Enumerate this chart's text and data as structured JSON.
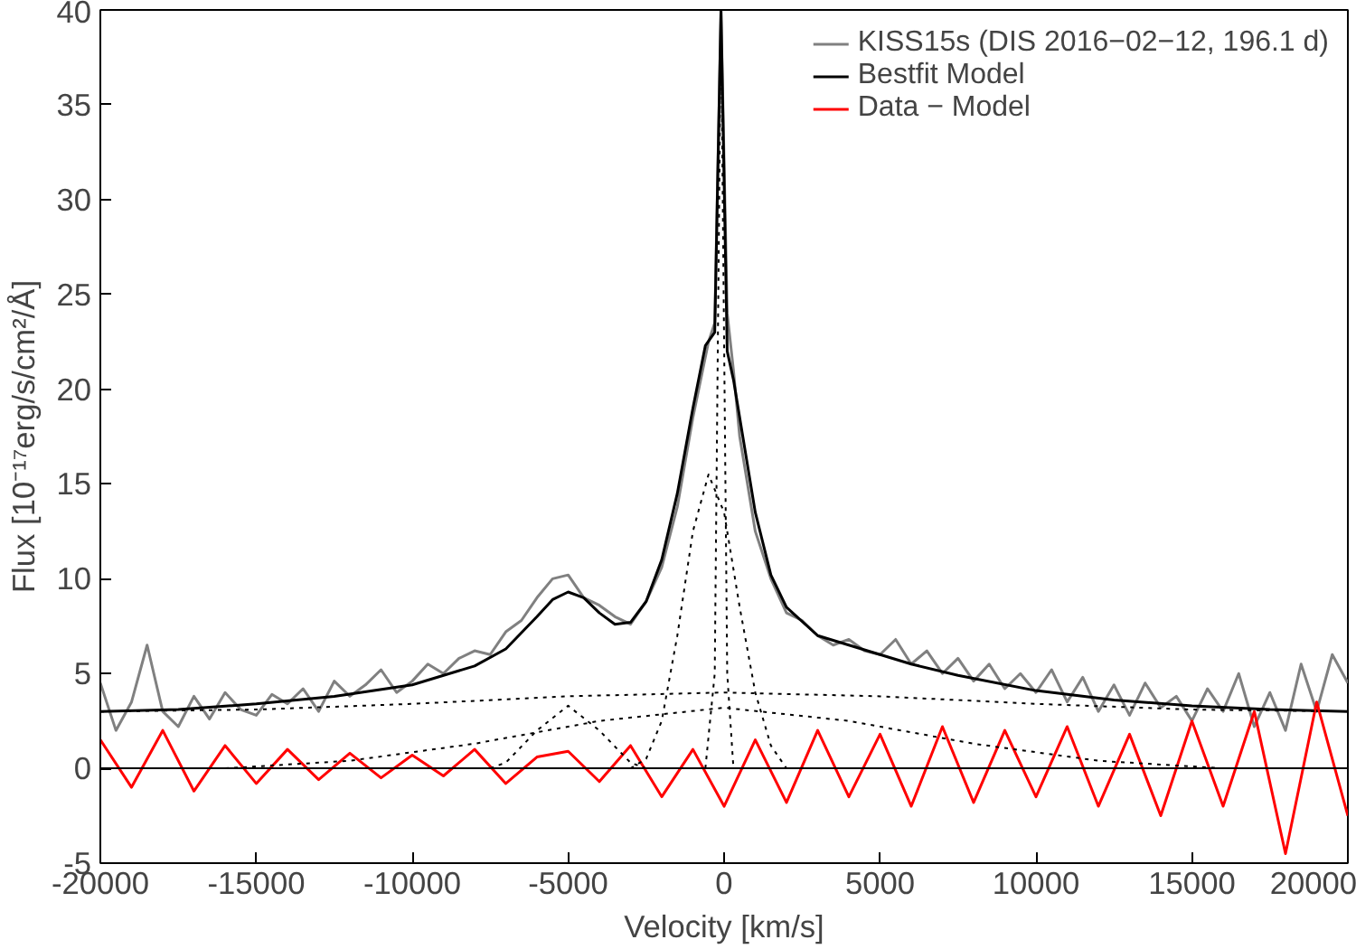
{
  "chart_data": {
    "type": "line",
    "xlabel": "Velocity [km/s]",
    "ylabel": "Flux [10⁻¹⁷erg/s/cm²/Å]",
    "xlim": [
      -20000,
      20000
    ],
    "ylim": [
      -5,
      40
    ],
    "xticks": [
      -20000,
      -15000,
      -10000,
      -5000,
      0,
      5000,
      10000,
      15000,
      20000
    ],
    "yticks": [
      -5,
      0,
      5,
      10,
      15,
      20,
      25,
      30,
      35,
      40
    ],
    "grid": false,
    "legend": "top right",
    "ref_lines": [
      {
        "axis": "y",
        "value": 0,
        "color": "#000000"
      }
    ],
    "series": [
      {
        "name": "KISS15s (DIS 2016−02−12, 196.1 d)",
        "color": "#808080",
        "x": [
          -20000,
          -19500,
          -19000,
          -18500,
          -18000,
          -17500,
          -17000,
          -16500,
          -16000,
          -15500,
          -15000,
          -14500,
          -14000,
          -13500,
          -13000,
          -12500,
          -12000,
          -11500,
          -11000,
          -10500,
          -10000,
          -9500,
          -9000,
          -8500,
          -8000,
          -7500,
          -7000,
          -6500,
          -6000,
          -5500,
          -5000,
          -4500,
          -4000,
          -3500,
          -3000,
          -2500,
          -2000,
          -1500,
          -1000,
          -500,
          -300,
          -100,
          100,
          300,
          500,
          1000,
          1500,
          2000,
          2500,
          3000,
          3500,
          4000,
          4500,
          5000,
          5500,
          6000,
          6500,
          7000,
          7500,
          8000,
          8500,
          9000,
          9500,
          10000,
          10500,
          11000,
          11500,
          12000,
          12500,
          13000,
          13500,
          14000,
          14500,
          15000,
          15500,
          16000,
          16500,
          17000,
          17500,
          18000,
          18500,
          19000,
          19500,
          20000
        ],
        "values": [
          4.5,
          2.0,
          3.5,
          6.5,
          3.0,
          2.2,
          3.8,
          2.6,
          4.0,
          3.1,
          2.8,
          3.9,
          3.4,
          4.2,
          3.0,
          4.6,
          3.8,
          4.4,
          5.2,
          4.0,
          4.6,
          5.5,
          5.0,
          5.8,
          6.2,
          6.0,
          7.2,
          7.8,
          9.0,
          10.0,
          10.2,
          9.0,
          8.6,
          8.0,
          7.6,
          8.8,
          10.6,
          13.8,
          18.5,
          22.5,
          23.5,
          40,
          24,
          21,
          17.5,
          12.5,
          10.0,
          8.2,
          7.8,
          7.0,
          6.5,
          6.8,
          6.2,
          6.0,
          6.8,
          5.5,
          6.2,
          5.0,
          5.8,
          4.6,
          5.5,
          4.2,
          5.0,
          4.0,
          5.2,
          3.5,
          4.8,
          3.0,
          4.4,
          2.8,
          4.5,
          3.2,
          3.8,
          2.5,
          4.2,
          3.0,
          5.0,
          2.2,
          4.0,
          2.0,
          5.5,
          3.0,
          6.0,
          4.5
        ]
      },
      {
        "name": "Bestfit Model",
        "color": "#000000",
        "x": [
          -20000,
          -17500,
          -15000,
          -12500,
          -10000,
          -8000,
          -7000,
          -6000,
          -5500,
          -5000,
          -4500,
          -4000,
          -3500,
          -3000,
          -2500,
          -2000,
          -1500,
          -1000,
          -600,
          -300,
          -100,
          100,
          300,
          600,
          1000,
          1500,
          2000,
          3000,
          4000,
          5000,
          6000,
          7500,
          10000,
          12500,
          15000,
          17500,
          20000
        ],
        "values": [
          3.0,
          3.1,
          3.4,
          3.8,
          4.4,
          5.4,
          6.3,
          8.0,
          8.9,
          9.3,
          9.0,
          8.2,
          7.6,
          7.7,
          8.8,
          11.0,
          14.5,
          19.0,
          22.3,
          23.0,
          40,
          22.0,
          20.5,
          17.5,
          13.5,
          10.2,
          8.5,
          7.0,
          6.5,
          6.0,
          5.5,
          4.9,
          4.1,
          3.6,
          3.3,
          3.1,
          3.0
        ]
      },
      {
        "name": "Data − Model",
        "color": "#ff0000",
        "x": [
          -20000,
          -19000,
          -18000,
          -17000,
          -16000,
          -15000,
          -14000,
          -13000,
          -12000,
          -11000,
          -10000,
          -9000,
          -8000,
          -7000,
          -6000,
          -5000,
          -4000,
          -3000,
          -2000,
          -1000,
          0,
          1000,
          2000,
          3000,
          4000,
          5000,
          6000,
          7000,
          8000,
          9000,
          10000,
          11000,
          12000,
          13000,
          14000,
          15000,
          16000,
          17000,
          18000,
          19000,
          20000
        ],
        "values": [
          1.5,
          -1.0,
          2.0,
          -1.2,
          1.2,
          -0.8,
          1.0,
          -0.6,
          0.8,
          -0.5,
          0.7,
          -0.4,
          1.0,
          -0.8,
          0.6,
          0.9,
          -0.7,
          1.2,
          -1.5,
          1.0,
          -2.0,
          1.5,
          -1.8,
          2.0,
          -1.5,
          1.8,
          -2.0,
          2.2,
          -1.8,
          2.0,
          -1.5,
          2.2,
          -2.0,
          1.8,
          -2.5,
          2.5,
          -2.0,
          3.0,
          -4.5,
          3.5,
          -2.5
        ]
      },
      {
        "color": "#000000",
        "line_style": "dotted",
        "x": [
          -600,
          -300,
          -100,
          100,
          300
        ],
        "values": [
          0,
          5,
          40,
          5,
          0
        ]
      },
      {
        "color": "#000000",
        "line_style": "dotted",
        "x": [
          -3000,
          -2500,
          -2000,
          -1500,
          -1000,
          -500,
          0,
          500,
          1000,
          1500,
          2000
        ],
        "values": [
          0,
          0.5,
          2.5,
          7,
          12.5,
          15.5,
          13.5,
          8.5,
          4,
          1.2,
          0
        ]
      },
      {
        "color": "#000000",
        "line_style": "dotted",
        "x": [
          -7500,
          -7000,
          -6000,
          -5000,
          -4000,
          -3000,
          -2500
        ],
        "values": [
          0,
          0.3,
          2.0,
          3.3,
          2.0,
          0.3,
          0
        ]
      },
      {
        "color": "#000000",
        "line_style": "dotted",
        "x": [
          -20000,
          -15000,
          -10000,
          -5000,
          0,
          5000,
          10000,
          15000,
          20000
        ],
        "values": [
          3.0,
          3.1,
          3.4,
          3.8,
          4.0,
          3.8,
          3.4,
          3.1,
          3.0
        ]
      },
      {
        "color": "#000000",
        "line_style": "dotted",
        "x": [
          -16000,
          -12000,
          -8000,
          -4000,
          0,
          4000,
          8000,
          12000,
          16000
        ],
        "values": [
          0,
          0.4,
          1.3,
          2.5,
          3.2,
          2.5,
          1.3,
          0.4,
          0
        ]
      }
    ]
  }
}
